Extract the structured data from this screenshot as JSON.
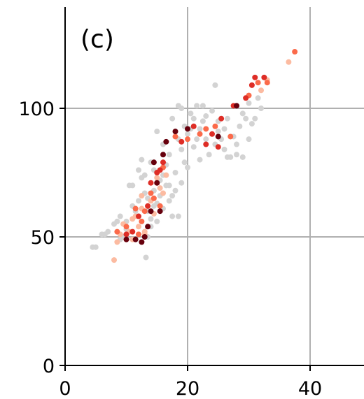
{
  "chart_data": {
    "type": "scatter",
    "panel_label": "(c)",
    "title": "",
    "xlabel": "",
    "ylabel": "",
    "xlim": [
      0,
      49
    ],
    "ylim": [
      0,
      141
    ],
    "x_ticks": [
      0,
      20,
      40
    ],
    "y_ticks": [
      0,
      50,
      100
    ],
    "grid": true,
    "series": [
      {
        "color": "#d3d3d3",
        "points": [
          [
            4.5,
            46
          ],
          [
            5,
            46
          ],
          [
            6,
            51
          ],
          [
            6.5,
            51
          ],
          [
            7,
            52
          ],
          [
            8,
            55
          ],
          [
            8.5,
            56
          ],
          [
            9,
            58
          ],
          [
            9,
            49
          ],
          [
            9.5,
            50
          ],
          [
            10,
            53
          ],
          [
            10,
            56
          ],
          [
            10.5,
            70
          ],
          [
            11,
            70
          ],
          [
            11,
            62
          ],
          [
            11.5,
            60
          ],
          [
            12,
            64
          ],
          [
            12,
            58
          ],
          [
            12.5,
            80
          ],
          [
            13,
            67
          ],
          [
            13,
            74
          ],
          [
            13.2,
            42
          ],
          [
            13.5,
            50
          ],
          [
            13.5,
            65
          ],
          [
            14,
            79
          ],
          [
            14,
            57
          ],
          [
            14.5,
            76
          ],
          [
            14.5,
            68
          ],
          [
            15,
            91
          ],
          [
            15,
            63
          ],
          [
            15.5,
            66
          ],
          [
            15.5,
            72
          ],
          [
            16,
            86
          ],
          [
            16,
            61
          ],
          [
            16.5,
            70
          ],
          [
            16.5,
            78
          ],
          [
            17,
            70
          ],
          [
            17,
            82
          ],
          [
            17.5,
            96
          ],
          [
            17.5,
            66
          ],
          [
            18,
            75
          ],
          [
            18,
            68
          ],
          [
            18.5,
            101
          ],
          [
            18.5,
            88
          ],
          [
            19,
            100
          ],
          [
            19,
            71
          ],
          [
            19.5,
            93
          ],
          [
            19.5,
            79
          ],
          [
            20,
            77
          ],
          [
            20.5,
            98
          ],
          [
            20.5,
            92
          ],
          [
            21,
            85
          ],
          [
            21,
            96
          ],
          [
            21.5,
            101
          ],
          [
            22,
            92
          ],
          [
            22,
            80
          ],
          [
            22.5,
            101
          ],
          [
            23,
            88
          ],
          [
            23,
            97
          ],
          [
            23.5,
            82
          ],
          [
            24,
            99
          ],
          [
            24.5,
            86
          ],
          [
            24.5,
            109
          ],
          [
            25,
            95
          ],
          [
            25,
            91
          ],
          [
            25.5,
            88
          ],
          [
            26,
            92
          ],
          [
            26,
            84
          ],
          [
            26.5,
            81
          ],
          [
            27,
            81
          ],
          [
            27.5,
            89
          ],
          [
            28,
            86
          ],
          [
            28,
            82
          ],
          [
            29,
            81
          ],
          [
            29,
            98
          ],
          [
            29.5,
            96
          ],
          [
            30,
            88
          ],
          [
            30.5,
            94
          ],
          [
            31,
            96
          ],
          [
            31.5,
            104
          ],
          [
            32,
            100
          ],
          [
            12.5,
            73
          ],
          [
            13.5,
            60
          ],
          [
            14.5,
            62
          ],
          [
            16,
            74
          ],
          [
            17,
            64
          ],
          [
            18.5,
            58
          ],
          [
            21.5,
            88
          ],
          [
            22.5,
            95
          ],
          [
            26.5,
            96
          ],
          [
            28.5,
            93
          ],
          [
            30,
            102
          ],
          [
            15,
            56
          ],
          [
            17.5,
            58
          ],
          [
            19,
            84
          ],
          [
            20,
            90
          ],
          [
            14,
            54
          ],
          [
            12,
            76
          ]
        ]
      },
      {
        "color": "#fcbba1",
        "points": [
          [
            8,
            41
          ],
          [
            8.5,
            48
          ],
          [
            9,
            51
          ],
          [
            10,
            49
          ],
          [
            10.5,
            52
          ],
          [
            11,
            57
          ],
          [
            11.5,
            58
          ],
          [
            12,
            54
          ],
          [
            12.5,
            61
          ],
          [
            13,
            51
          ],
          [
            13.5,
            62
          ],
          [
            14,
            64
          ],
          [
            14.5,
            59
          ],
          [
            15,
            73
          ],
          [
            15.5,
            69
          ],
          [
            16,
            67
          ],
          [
            16.5,
            74
          ],
          [
            32,
            107
          ],
          [
            33,
            111
          ],
          [
            36.5,
            118
          ],
          [
            9.5,
            55
          ],
          [
            11,
            49
          ],
          [
            12.5,
            66
          ],
          [
            13,
            52
          ]
        ]
      },
      {
        "color": "#fb6a4a",
        "points": [
          [
            8.5,
            52
          ],
          [
            10,
            54
          ],
          [
            11.5,
            61
          ],
          [
            12,
            51
          ],
          [
            13,
            60
          ],
          [
            14,
            67
          ],
          [
            14.5,
            65
          ],
          [
            15,
            71
          ],
          [
            16,
            77
          ],
          [
            18,
            89
          ],
          [
            20,
            88
          ],
          [
            22,
            90
          ],
          [
            23,
            92
          ],
          [
            24.5,
            93
          ],
          [
            27,
            89
          ],
          [
            30,
            105
          ],
          [
            31.5,
            110
          ],
          [
            33,
            110
          ],
          [
            37.5,
            122
          ],
          [
            12.5,
            56
          ],
          [
            15.5,
            62
          ]
        ]
      },
      {
        "color": "#de2d26",
        "points": [
          [
            10,
            51
          ],
          [
            11,
            52
          ],
          [
            12,
            58
          ],
          [
            14,
            71
          ],
          [
            15,
            75
          ],
          [
            16,
            79
          ],
          [
            19,
            87
          ],
          [
            21,
            93
          ],
          [
            23,
            86
          ],
          [
            24,
            90
          ],
          [
            25,
            85
          ],
          [
            25.5,
            96
          ],
          [
            27.5,
            101
          ],
          [
            29.5,
            104
          ],
          [
            30.5,
            109
          ],
          [
            31,
            112
          ],
          [
            32.5,
            112
          ],
          [
            13.5,
            62
          ],
          [
            15.5,
            76
          ]
        ]
      },
      {
        "color": "#67000d",
        "points": [
          [
            10,
            49
          ],
          [
            11.5,
            49
          ],
          [
            12.5,
            48
          ],
          [
            13.5,
            54
          ],
          [
            14,
            60
          ],
          [
            15,
            71
          ],
          [
            16,
            82
          ],
          [
            16.5,
            87
          ],
          [
            18,
            91
          ],
          [
            20,
            92
          ],
          [
            25,
            89
          ],
          [
            28,
            101
          ],
          [
            14.5,
            79
          ],
          [
            15.5,
            60
          ],
          [
            13,
            50
          ]
        ]
      }
    ]
  }
}
